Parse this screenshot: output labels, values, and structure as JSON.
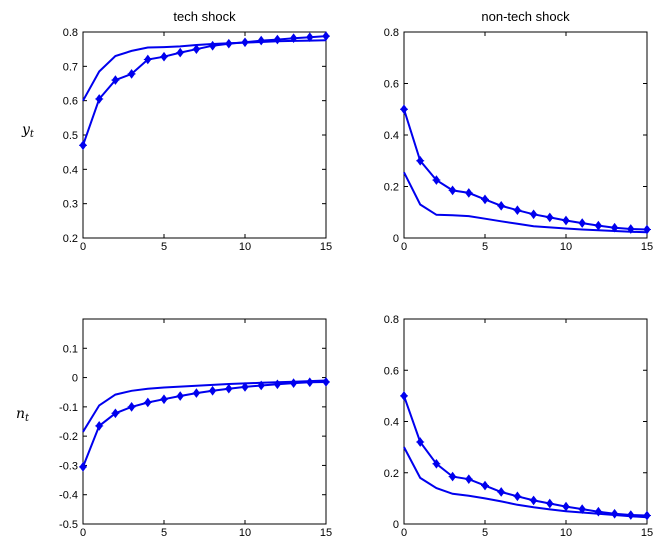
{
  "row_labels": [
    {
      "main": "y",
      "sub": "t"
    },
    {
      "main": "n",
      "sub": "t"
    }
  ],
  "chart_data": [
    {
      "type": "line",
      "title": "tech shock",
      "xlim": [
        0,
        15
      ],
      "ylim": [
        0.2,
        0.8
      ],
      "xticks": [
        0,
        5,
        10,
        15
      ],
      "yticks": [
        0.2,
        0.3,
        0.4,
        0.5,
        0.6,
        0.7,
        0.8
      ],
      "ytick_labels": [
        "0.2",
        "0.3",
        "0.4",
        "0.5",
        "0.6",
        "0.7",
        "0.8"
      ],
      "series": [
        {
          "marker": "diamond",
          "x": [
            0,
            1,
            2,
            3,
            4,
            5,
            6,
            7,
            8,
            9,
            10,
            11,
            12,
            13,
            14,
            15
          ],
          "values": [
            0.47,
            0.605,
            0.66,
            0.678,
            0.72,
            0.728,
            0.74,
            0.75,
            0.76,
            0.766,
            0.77,
            0.775,
            0.778,
            0.782,
            0.785,
            0.788
          ]
        },
        {
          "marker": "none",
          "x": [
            0,
            1,
            2,
            3,
            4,
            5,
            6,
            7,
            8,
            9,
            10,
            11,
            12,
            13,
            14,
            15
          ],
          "values": [
            0.6,
            0.685,
            0.73,
            0.745,
            0.755,
            0.756,
            0.758,
            0.762,
            0.765,
            0.767,
            0.769,
            0.771,
            0.773,
            0.774,
            0.775,
            0.776
          ]
        }
      ]
    },
    {
      "type": "line",
      "title": "non-tech shock",
      "xlim": [
        0,
        15
      ],
      "ylim": [
        0,
        0.8
      ],
      "xticks": [
        0,
        5,
        10,
        15
      ],
      "yticks": [
        0,
        0.2,
        0.4,
        0.6,
        0.8
      ],
      "ytick_labels": [
        "0",
        "0.2",
        "0.4",
        "0.6",
        "0.8"
      ],
      "series": [
        {
          "marker": "diamond",
          "x": [
            0,
            1,
            2,
            3,
            4,
            5,
            6,
            7,
            8,
            9,
            10,
            11,
            12,
            13,
            14,
            15
          ],
          "values": [
            0.5,
            0.3,
            0.225,
            0.185,
            0.175,
            0.15,
            0.125,
            0.108,
            0.092,
            0.08,
            0.068,
            0.058,
            0.048,
            0.04,
            0.035,
            0.033
          ]
        },
        {
          "marker": "none",
          "x": [
            0,
            1,
            2,
            3,
            4,
            5,
            6,
            7,
            8,
            9,
            10,
            11,
            12,
            13,
            14,
            15
          ],
          "values": [
            0.255,
            0.13,
            0.09,
            0.088,
            0.085,
            0.075,
            0.065,
            0.055,
            0.046,
            0.041,
            0.037,
            0.033,
            0.03,
            0.027,
            0.024,
            0.022
          ]
        }
      ]
    },
    {
      "type": "line",
      "title": "",
      "xlim": [
        0,
        15
      ],
      "ylim": [
        -0.5,
        0.2
      ],
      "xticks": [
        0,
        5,
        10,
        15
      ],
      "yticks": [
        -0.5,
        -0.4,
        -0.3,
        -0.2,
        -0.1,
        0,
        0.1
      ],
      "ytick_labels": [
        "-0.5",
        "-0.4",
        "-0.3",
        "-0.2",
        "-0.1",
        "0",
        "0.1"
      ],
      "series": [
        {
          "marker": "diamond",
          "x": [
            0,
            1,
            2,
            3,
            4,
            5,
            6,
            7,
            8,
            9,
            10,
            11,
            12,
            13,
            14,
            15
          ],
          "values": [
            -0.305,
            -0.165,
            -0.122,
            -0.1,
            -0.085,
            -0.074,
            -0.063,
            -0.053,
            -0.045,
            -0.038,
            -0.032,
            -0.027,
            -0.023,
            -0.019,
            -0.016,
            -0.015
          ]
        },
        {
          "marker": "none",
          "x": [
            0,
            1,
            2,
            3,
            4,
            5,
            6,
            7,
            8,
            9,
            10,
            11,
            12,
            13,
            14,
            15
          ],
          "values": [
            -0.185,
            -0.095,
            -0.058,
            -0.045,
            -0.038,
            -0.034,
            -0.031,
            -0.028,
            -0.025,
            -0.022,
            -0.02,
            -0.018,
            -0.016,
            -0.014,
            -0.012,
            -0.01
          ]
        }
      ]
    },
    {
      "type": "line",
      "title": "",
      "xlim": [
        0,
        15
      ],
      "ylim": [
        0,
        0.8
      ],
      "xticks": [
        0,
        5,
        10,
        15
      ],
      "yticks": [
        0,
        0.2,
        0.4,
        0.6,
        0.8
      ],
      "ytick_labels": [
        "0",
        "0.2",
        "0.4",
        "0.6",
        "0.8"
      ],
      "series": [
        {
          "marker": "diamond",
          "x": [
            0,
            1,
            2,
            3,
            4,
            5,
            6,
            7,
            8,
            9,
            10,
            11,
            12,
            13,
            14,
            15
          ],
          "values": [
            0.5,
            0.32,
            0.235,
            0.185,
            0.175,
            0.15,
            0.125,
            0.108,
            0.092,
            0.08,
            0.068,
            0.058,
            0.048,
            0.04,
            0.035,
            0.033
          ]
        },
        {
          "marker": "none",
          "x": [
            0,
            1,
            2,
            3,
            4,
            5,
            6,
            7,
            8,
            9,
            10,
            11,
            12,
            13,
            14,
            15
          ],
          "values": [
            0.3,
            0.18,
            0.14,
            0.118,
            0.11,
            0.1,
            0.088,
            0.075,
            0.065,
            0.057,
            0.05,
            0.045,
            0.04,
            0.035,
            0.03,
            0.026
          ]
        }
      ]
    }
  ]
}
